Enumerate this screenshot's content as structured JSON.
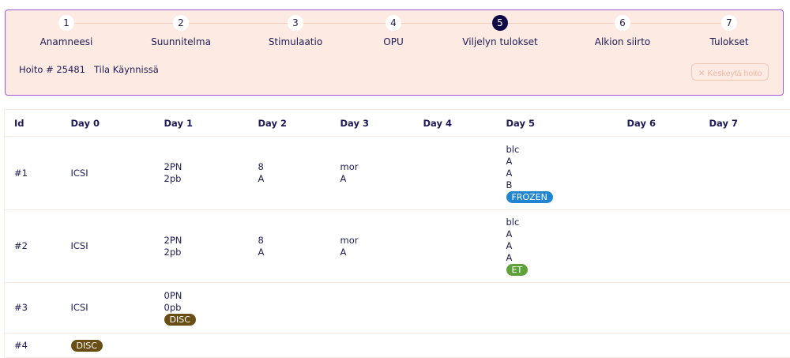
{
  "steps": [
    {
      "n": "1",
      "label": "Anamneesi"
    },
    {
      "n": "2",
      "label": "Suunnitelma"
    },
    {
      "n": "3",
      "label": "Stimulaatio"
    },
    {
      "n": "4",
      "label": "OPU"
    },
    {
      "n": "5",
      "label": "Viljelyn tulokset",
      "active": true
    },
    {
      "n": "6",
      "label": "Alkion siirto"
    },
    {
      "n": "7",
      "label": "Tulokset"
    }
  ],
  "info": {
    "hoito": "Hoito # 25481",
    "tila": "Tila Käynnissä"
  },
  "cancel_button": {
    "icon": "close-icon",
    "label": "Keskeytä hoito"
  },
  "colors": {
    "accent": "#0d0a45",
    "panel_bg": "#fdebe3",
    "border": "#a25bd8",
    "frozen": "#2185d0",
    "et": "#5ea33a",
    "disc": "#6a4d12"
  },
  "table": {
    "headers": [
      "Id",
      "Day 0",
      "Day 1",
      "Day 2",
      "Day 3",
      "Day 4",
      "Day 5",
      "Day 6",
      "Day 7"
    ],
    "rows": [
      {
        "id": "#1",
        "cells": [
          {
            "lines": [
              "ICSI"
            ]
          },
          {
            "lines": [
              "2PN",
              "2pb"
            ]
          },
          {
            "lines": [
              "8",
              "A"
            ]
          },
          {
            "lines": [
              "mor",
              "A"
            ]
          },
          {
            "lines": []
          },
          {
            "lines": [
              "blc",
              "A",
              "A",
              "B"
            ],
            "badge": "FROZEN",
            "badge_type": "frozen"
          },
          {
            "lines": []
          },
          {
            "lines": []
          }
        ]
      },
      {
        "id": "#2",
        "cells": [
          {
            "lines": [
              "ICSI"
            ]
          },
          {
            "lines": [
              "2PN",
              "2pb"
            ]
          },
          {
            "lines": [
              "8",
              "A"
            ]
          },
          {
            "lines": [
              "mor",
              "A"
            ]
          },
          {
            "lines": []
          },
          {
            "lines": [
              "blc",
              "A",
              "A",
              "A"
            ],
            "badge": "ET",
            "badge_type": "et"
          },
          {
            "lines": []
          },
          {
            "lines": []
          }
        ]
      },
      {
        "id": "#3",
        "cells": [
          {
            "lines": [
              "ICSI"
            ]
          },
          {
            "lines": [
              "0PN",
              "0pb"
            ],
            "badge": "DISC",
            "badge_type": "disc"
          },
          {
            "lines": []
          },
          {
            "lines": []
          },
          {
            "lines": []
          },
          {
            "lines": []
          },
          {
            "lines": []
          },
          {
            "lines": []
          }
        ]
      },
      {
        "id": "#4",
        "cells": [
          {
            "lines": [],
            "badge": "DISC",
            "badge_type": "disc"
          },
          {
            "lines": []
          },
          {
            "lines": []
          },
          {
            "lines": []
          },
          {
            "lines": []
          },
          {
            "lines": []
          },
          {
            "lines": []
          },
          {
            "lines": []
          }
        ]
      }
    ]
  }
}
